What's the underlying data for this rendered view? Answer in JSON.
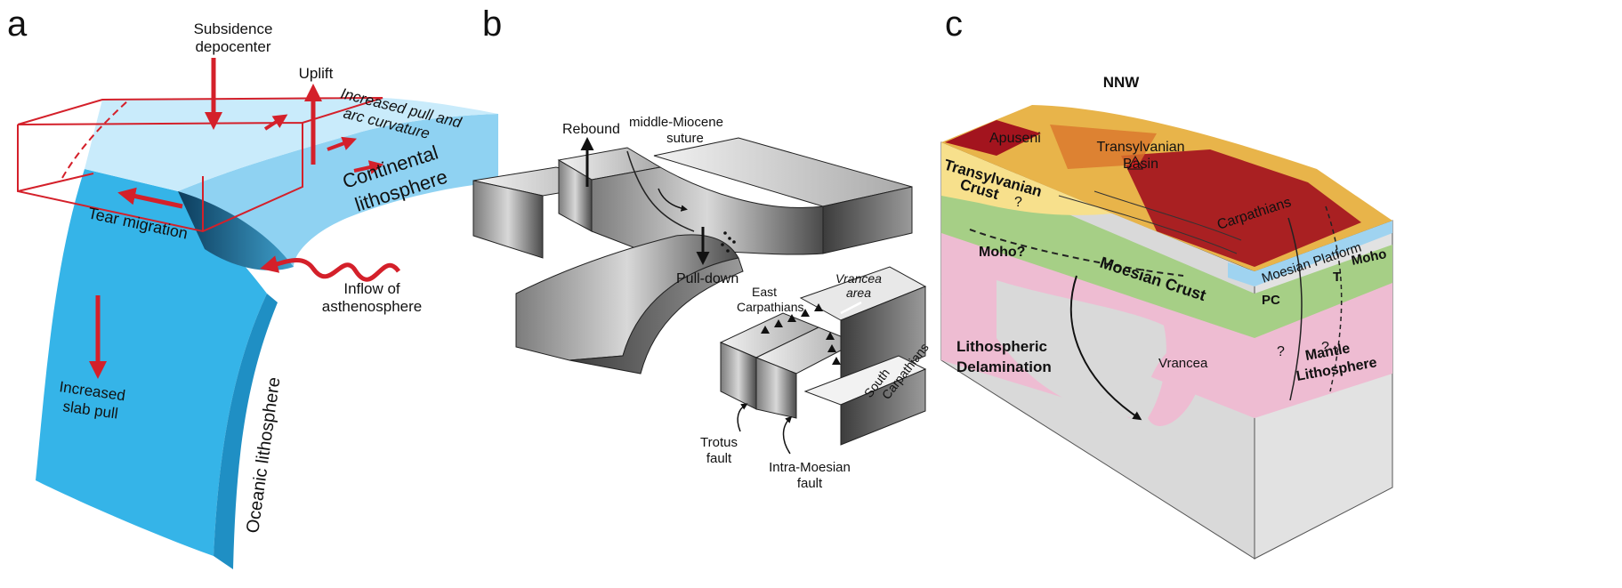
{
  "panel_a": {
    "letter": "a",
    "subsidence_line1": "Subsidence",
    "subsidence_line2": "depocenter",
    "uplift": "Uplift",
    "increased_pull_line1": "Increased pull and",
    "increased_pull_line2": "arc curvature",
    "continental_line1": "Continental",
    "continental_line2": "lithosphere",
    "tear_migration": "Tear migration",
    "inflow_line1": "Inflow of",
    "inflow_line2": "asthenosphere",
    "slab_pull_line1": "Increased",
    "slab_pull_line2": "slab pull",
    "oceanic": "Oceanic lithosphere",
    "colors": {
      "ocean_blue": "#35b4e8",
      "light_blue": "#a8dcf5",
      "arrow_red": "#d4202a"
    }
  },
  "panel_b": {
    "letter": "b",
    "rebound": "Rebound",
    "suture_line1": "middle-Miocene",
    "suture_line2": "suture",
    "pull_down": "Pull-down",
    "east_carp_line1": "East",
    "east_carp_line2": "Carpathians",
    "vrancea_line1": "Vrancea",
    "vrancea_line2": "area",
    "south_carp_line1": "South",
    "south_carp_line2": "Carpathians",
    "trotus_line1": "Trotus",
    "trotus_line2": "fault",
    "intra_line1": "Intra-Moesian",
    "intra_line2": "fault"
  },
  "panel_c": {
    "letter": "c",
    "nnw": "NNW",
    "apuseni": "Apuseni",
    "transylvanian_basin_line1": "Transylvanian",
    "transylvanian_basin_line2": "Basin",
    "transylvanian_crust_line1": "Transylvanian",
    "transylvanian_crust_line2": "Crust",
    "question": "?",
    "carpathians": "Carpathians",
    "moesian_platform": "Moesian Platform",
    "moesian_crust": "Moesian Crust",
    "moho_q": "Moho?",
    "moho": "Moho",
    "pc": "PC",
    "t": "T",
    "lith_del_line1": "Lithospheric",
    "lith_del_line2": "Delamination",
    "vrancea": "Vrancea",
    "mantle_line1": "Mantle",
    "mantle_line2": "Lithosphere",
    "colors": {
      "crust_yellow": "#f7e08c",
      "crust_green": "#a6cf86",
      "mantle_pink": "#eebcd2",
      "gray": "#d9d9d9",
      "delam_red": "#cc1f1f"
    }
  }
}
